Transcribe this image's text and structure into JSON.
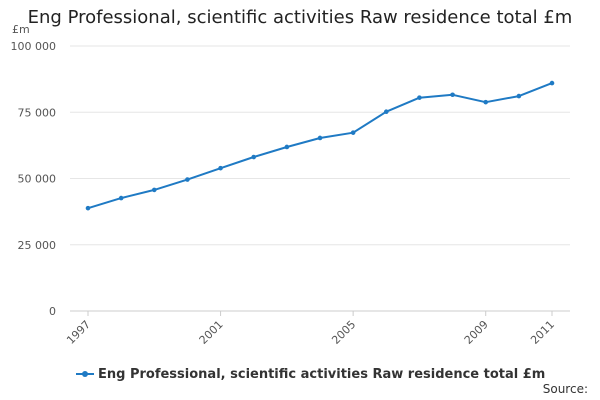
{
  "colors": {
    "series": "#1f7ac4",
    "grid": "#e6e6e6",
    "axis": "#cccccc"
  },
  "footer": {
    "source": "Source:"
  },
  "chart_data": {
    "type": "line",
    "title": "Eng Professional, scientific activities Raw residence total £m",
    "y_unit_label": "£m",
    "xlabel": "",
    "ylabel": "£m",
    "xlim": [
      1997,
      2011
    ],
    "ylim": [
      0,
      100000
    ],
    "grid": true,
    "x_tick_labels": [
      {
        "x": 1997,
        "label": "1997"
      },
      {
        "x": 2001,
        "label": "2001"
      },
      {
        "x": 2005,
        "label": "2005"
      },
      {
        "x": 2009,
        "label": "2009"
      },
      {
        "x": 2011,
        "label": "2011"
      }
    ],
    "y_tick_labels": [
      {
        "y": 0,
        "label": "0"
      },
      {
        "y": 25000,
        "label": "25 000"
      },
      {
        "y": 50000,
        "label": "50 000"
      },
      {
        "y": 75000,
        "label": "75 000"
      },
      {
        "y": 100000,
        "label": "100 000"
      }
    ],
    "legend_position": "bottom-left",
    "series": [
      {
        "name": "Eng Professional, scientific activities Raw residence total £m",
        "x": [
          1997,
          1998,
          1999,
          2000,
          2001,
          2002,
          2003,
          2004,
          2005,
          2006,
          2007,
          2008,
          2009,
          2010,
          2011
        ],
        "values": [
          38800,
          42600,
          45700,
          49600,
          53900,
          58100,
          61900,
          65300,
          67300,
          75200,
          80500,
          81600,
          78800,
          81100,
          86000
        ]
      }
    ]
  }
}
